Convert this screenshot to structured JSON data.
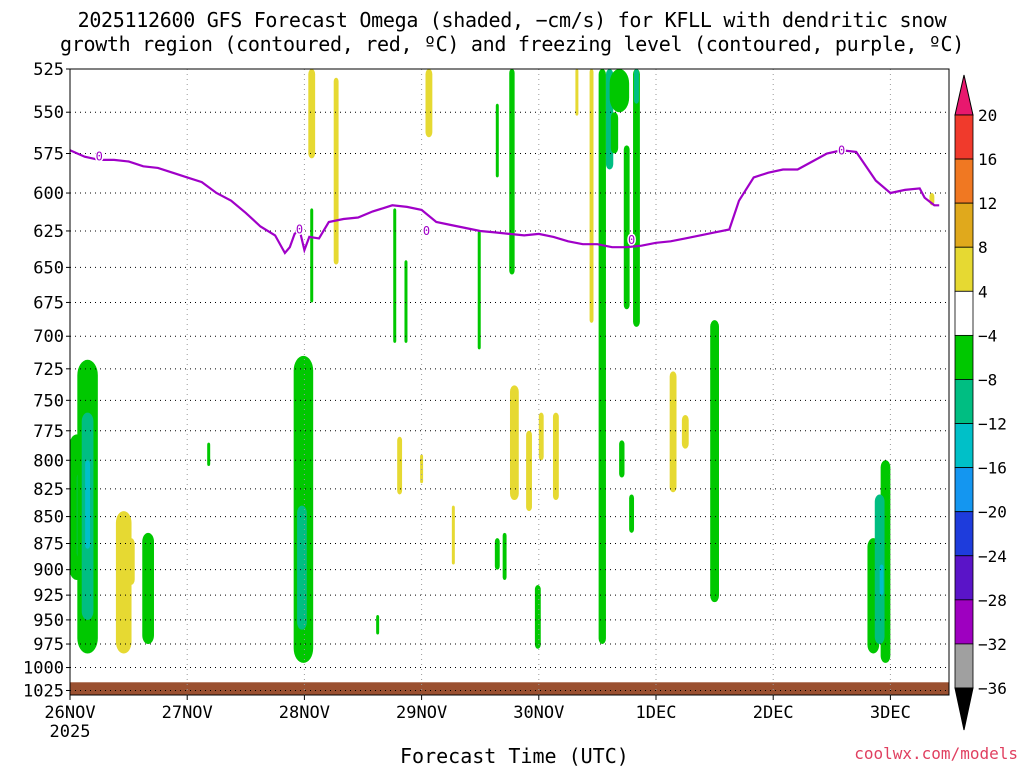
{
  "title_line1": "2025112600 GFS Forecast Omega (shaded, −cm/s) for KFLL with dendritic snow",
  "title_line2": "growth region (contoured, red, ºC) and freezing level (contoured, purple, ºC)",
  "xlabel": "Forecast Time (UTC)",
  "credit": "coolwx.com/models",
  "chart_data": {
    "type": "heatmap",
    "title": "2025112600 GFS Forecast Omega (shaded, −cm/s) for KFLL with dendritic snow growth region (contoured, red, ºC) and freezing level (contoured, purple, ºC)",
    "xlabel": "Forecast Time (UTC)",
    "ylabel": "",
    "x_ticks": [
      "26NOV",
      "27NOV",
      "28NOV",
      "29NOV",
      "30NOV",
      "1DEC",
      "2DEC",
      "3DEC"
    ],
    "x_tick_sublabel": "2025",
    "x_range_hours": [
      0,
      180
    ],
    "y_ticks": [
      525,
      550,
      575,
      600,
      625,
      650,
      675,
      700,
      725,
      750,
      775,
      800,
      825,
      850,
      875,
      900,
      925,
      950,
      975,
      1000,
      1025
    ],
    "y_range_hpa": [
      525,
      1030
    ],
    "y_scale": "log",
    "grid": true,
    "colorbar": {
      "labels": [
        "20",
        "16",
        "12",
        "8",
        "4",
        "−4",
        "−8",
        "−12",
        "−16",
        "−20",
        "−24",
        "−28",
        "−32",
        "−36"
      ],
      "colors": [
        "#e8186e",
        "#f03a2c",
        "#f07822",
        "#e0a91c",
        "#e6d932",
        "#ffffff",
        "#00c800",
        "#00be82",
        "#00c0c8",
        "#1496f0",
        "#1e3cdc",
        "#5a14c8",
        "#9e00c0",
        "#a0a0a0",
        "#000000"
      ]
    },
    "freezing_level": {
      "label": "0",
      "color": "#a000c8",
      "points": [
        [
          0,
          573
        ],
        [
          3,
          577
        ],
        [
          6,
          579
        ],
        [
          9,
          579
        ],
        [
          12,
          580
        ],
        [
          15,
          583
        ],
        [
          18,
          584
        ],
        [
          21,
          587
        ],
        [
          24,
          590
        ],
        [
          27,
          593
        ],
        [
          30,
          600
        ],
        [
          33,
          605
        ],
        [
          36,
          613
        ],
        [
          39,
          622
        ],
        [
          42,
          628
        ],
        [
          44,
          640
        ],
        [
          45,
          636
        ],
        [
          46,
          627
        ],
        [
          47,
          624
        ],
        [
          48,
          638
        ],
        [
          49,
          629
        ],
        [
          51,
          630
        ],
        [
          53,
          619
        ],
        [
          56,
          617
        ],
        [
          59,
          616
        ],
        [
          62,
          612
        ],
        [
          64,
          610
        ],
        [
          66,
          608
        ],
        [
          69,
          609
        ],
        [
          72,
          611
        ],
        [
          75,
          619
        ],
        [
          78,
          621
        ],
        [
          81,
          623
        ],
        [
          84,
          625
        ],
        [
          87,
          626
        ],
        [
          90,
          627
        ],
        [
          93,
          628
        ],
        [
          96,
          627
        ],
        [
          99,
          629
        ],
        [
          102,
          632
        ],
        [
          105,
          634
        ],
        [
          108,
          634
        ],
        [
          111,
          636
        ],
        [
          114,
          636
        ],
        [
          117,
          635
        ],
        [
          120,
          633
        ],
        [
          123,
          632
        ],
        [
          126,
          630
        ],
        [
          129,
          628
        ],
        [
          132,
          626
        ],
        [
          135,
          624
        ],
        [
          137,
          605
        ],
        [
          140,
          590
        ],
        [
          143,
          587
        ],
        [
          146,
          585
        ],
        [
          149,
          585
        ],
        [
          152,
          580
        ],
        [
          155,
          575
        ],
        [
          158,
          573
        ],
        [
          161,
          574
        ],
        [
          163,
          583
        ],
        [
          165,
          592
        ],
        [
          168,
          600
        ],
        [
          171,
          598
        ],
        [
          174,
          597
        ],
        [
          175,
          603
        ],
        [
          177,
          608
        ],
        [
          178,
          608
        ]
      ]
    },
    "omega_features": [
      {
        "value": -8,
        "t": 1.4,
        "p_top": 778,
        "p_bot": 910,
        "w": 3.0
      },
      {
        "value": -12,
        "t": 2.2,
        "p_top": 810,
        "p_bot": 890,
        "w": 1.6
      },
      {
        "value": -8,
        "t": 3.6,
        "p_top": 718,
        "p_bot": 985,
        "w": 4.2
      },
      {
        "value": -12,
        "t": 3.6,
        "p_top": 760,
        "p_bot": 950,
        "w": 2.4
      },
      {
        "value": -16,
        "t": 3.6,
        "p_top": 800,
        "p_bot": 880,
        "w": 1.0
      },
      {
        "value": 4,
        "t": 11.0,
        "p_top": 845,
        "p_bot": 985,
        "w": 3.2
      },
      {
        "value": 4,
        "t": 12.5,
        "p_top": 870,
        "p_bot": 915,
        "w": 1.5
      },
      {
        "value": -8,
        "t": 16.0,
        "p_top": 865,
        "p_bot": 975,
        "w": 2.4
      },
      {
        "value": -8,
        "t": 28.4,
        "p_top": 785,
        "p_bot": 805,
        "w": 0.4
      },
      {
        "value": -8,
        "t": 47.8,
        "p_top": 715,
        "p_bot": 995,
        "w": 4.0
      },
      {
        "value": -12,
        "t": 47.5,
        "p_top": 840,
        "p_bot": 960,
        "w": 2.0
      },
      {
        "value": -8,
        "t": 49.5,
        "p_top": 610,
        "p_bot": 675,
        "w": 0.5
      },
      {
        "value": 12,
        "t": 49.5,
        "p_top": 525,
        "p_bot": 560,
        "w": 1.0
      },
      {
        "value": 4,
        "t": 49.5,
        "p_top": 525,
        "p_bot": 578,
        "w": 1.4
      },
      {
        "value": 4,
        "t": 54.5,
        "p_top": 530,
        "p_bot": 648,
        "w": 1.0
      },
      {
        "value": -8,
        "t": 66.5,
        "p_top": 610,
        "p_bot": 705,
        "w": 0.5
      },
      {
        "value": -8,
        "t": 68.8,
        "p_top": 645,
        "p_bot": 705,
        "w": 0.3
      },
      {
        "value": 4,
        "t": 73.5,
        "p_top": 525,
        "p_bot": 565,
        "w": 1.4
      },
      {
        "value": 4,
        "t": 67.5,
        "p_top": 780,
        "p_bot": 830,
        "w": 1.0
      },
      {
        "value": 4,
        "t": 72.0,
        "p_top": 795,
        "p_bot": 820,
        "w": 0.6
      },
      {
        "value": 4,
        "t": 78.5,
        "p_top": 840,
        "p_bot": 895,
        "w": 0.6
      },
      {
        "value": -8,
        "t": 63.0,
        "p_top": 945,
        "p_bot": 965,
        "w": 0.4
      },
      {
        "value": -8,
        "t": 83.8,
        "p_top": 625,
        "p_bot": 710,
        "w": 0.5
      },
      {
        "value": -8,
        "t": 90.5,
        "p_top": 525,
        "p_bot": 655,
        "w": 1.1
      },
      {
        "value": -8,
        "t": 87.5,
        "p_top": 545,
        "p_bot": 590,
        "w": 0.5
      },
      {
        "value": -8,
        "t": 87.5,
        "p_top": 870,
        "p_bot": 900,
        "w": 1.0
      },
      {
        "value": -8,
        "t": 89.0,
        "p_top": 865,
        "p_bot": 910,
        "w": 0.8
      },
      {
        "value": 4,
        "t": 91.0,
        "p_top": 738,
        "p_bot": 835,
        "w": 1.8
      },
      {
        "value": 4,
        "t": 94.0,
        "p_top": 775,
        "p_bot": 845,
        "w": 1.2
      },
      {
        "value": 4,
        "t": 96.5,
        "p_top": 760,
        "p_bot": 800,
        "w": 1.0
      },
      {
        "value": 4,
        "t": 99.5,
        "p_top": 760,
        "p_bot": 835,
        "w": 1.2
      },
      {
        "value": -8,
        "t": 95.8,
        "p_top": 915,
        "p_bot": 980,
        "w": 1.2
      },
      {
        "value": 4,
        "t": 103.8,
        "p_top": 525,
        "p_bot": 552,
        "w": 0.4
      },
      {
        "value": 4,
        "t": 106.8,
        "p_top": 525,
        "p_bot": 690,
        "w": 0.8
      },
      {
        "value": -8,
        "t": 109.0,
        "p_top": 525,
        "p_bot": 975,
        "w": 1.5
      },
      {
        "value": -12,
        "t": 110.5,
        "p_top": 525,
        "p_bot": 585,
        "w": 1.5
      },
      {
        "value": -8,
        "t": 112.5,
        "p_top": 525,
        "p_bot": 550,
        "w": 4.0
      },
      {
        "value": -8,
        "t": 111.5,
        "p_top": 550,
        "p_bot": 575,
        "w": 1.5
      },
      {
        "value": -8,
        "t": 114.0,
        "p_top": 570,
        "p_bot": 680,
        "w": 1.2
      },
      {
        "value": -8,
        "t": 116.0,
        "p_top": 525,
        "p_bot": 693,
        "w": 1.4
      },
      {
        "value": -12,
        "t": 116.0,
        "p_top": 525,
        "p_bot": 545,
        "w": 1.0
      },
      {
        "value": -8,
        "t": 113.0,
        "p_top": 783,
        "p_bot": 815,
        "w": 1.1
      },
      {
        "value": -8,
        "t": 115.0,
        "p_top": 830,
        "p_bot": 865,
        "w": 1.0
      },
      {
        "value": 4,
        "t": 123.5,
        "p_top": 727,
        "p_bot": 828,
        "w": 1.4
      },
      {
        "value": 4,
        "t": 126.0,
        "p_top": 762,
        "p_bot": 790,
        "w": 1.4
      },
      {
        "value": -8,
        "t": 132.0,
        "p_top": 688,
        "p_bot": 932,
        "w": 1.8
      },
      {
        "value": -8,
        "t": 164.5,
        "p_top": 870,
        "p_bot": 985,
        "w": 2.4
      },
      {
        "value": -8,
        "t": 167.0,
        "p_top": 800,
        "p_bot": 995,
        "w": 2.0
      },
      {
        "value": -12,
        "t": 165.8,
        "p_top": 830,
        "p_bot": 975,
        "w": 2.0
      },
      {
        "value": -16,
        "t": 166.2,
        "p_top": 895,
        "p_bot": 925,
        "w": 0.8
      },
      {
        "value": 4,
        "t": 176.5,
        "p_top": 600,
        "p_bot": 608,
        "w": 1.0
      }
    ],
    "surface": {
      "color": "#9a5030"
    }
  }
}
